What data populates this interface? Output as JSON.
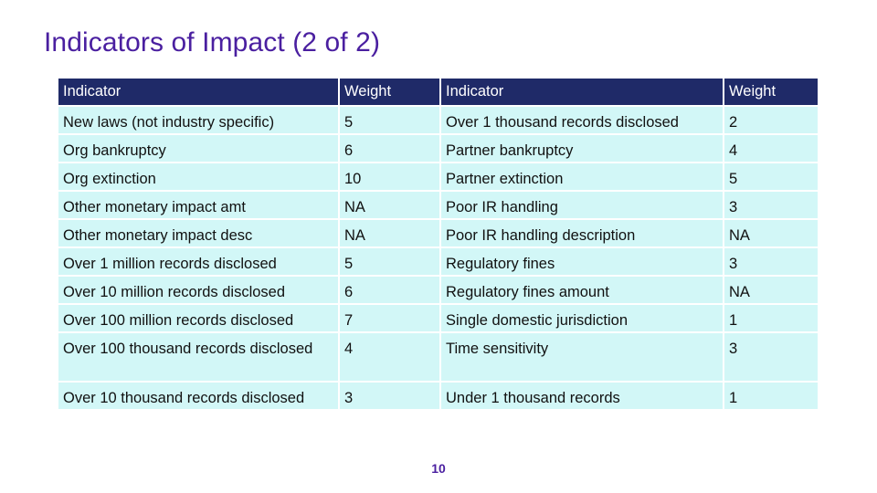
{
  "title": "Indicators of Impact (2 of 2)",
  "table": {
    "headers": [
      "Indicator",
      "Weight",
      "Indicator",
      "Weight"
    ],
    "rows": [
      [
        "New laws (not industry specific)",
        "5",
        "Over 1 thousand records disclosed",
        "2"
      ],
      [
        "Org bankruptcy",
        "6",
        "Partner bankruptcy",
        "4"
      ],
      [
        "Org extinction",
        "10",
        "Partner extinction",
        "5"
      ],
      [
        "Other monetary impact amt",
        "NA",
        "Poor IR handling",
        "3"
      ],
      [
        "Other monetary impact desc",
        "NA",
        "Poor IR handling description",
        "NA"
      ],
      [
        "Over 1 million records disclosed",
        "5",
        "Regulatory fines",
        "3"
      ],
      [
        "Over 10 million records disclosed",
        "6",
        "Regulatory fines amount",
        "NA"
      ],
      [
        "Over 100 million records disclosed",
        "7",
        "Single domestic jurisdiction",
        "1"
      ],
      [
        "Over 100 thousand records disclosed",
        "4",
        "Time sensitivity",
        "3"
      ],
      [
        "Over 10 thousand records disclosed",
        "3",
        "Under 1 thousand records",
        "1"
      ]
    ]
  },
  "page_number": "10",
  "colors": {
    "title": "#4a1fa0",
    "header_bg": "#1f2a68",
    "cell_bg": "#d2f7f7"
  }
}
